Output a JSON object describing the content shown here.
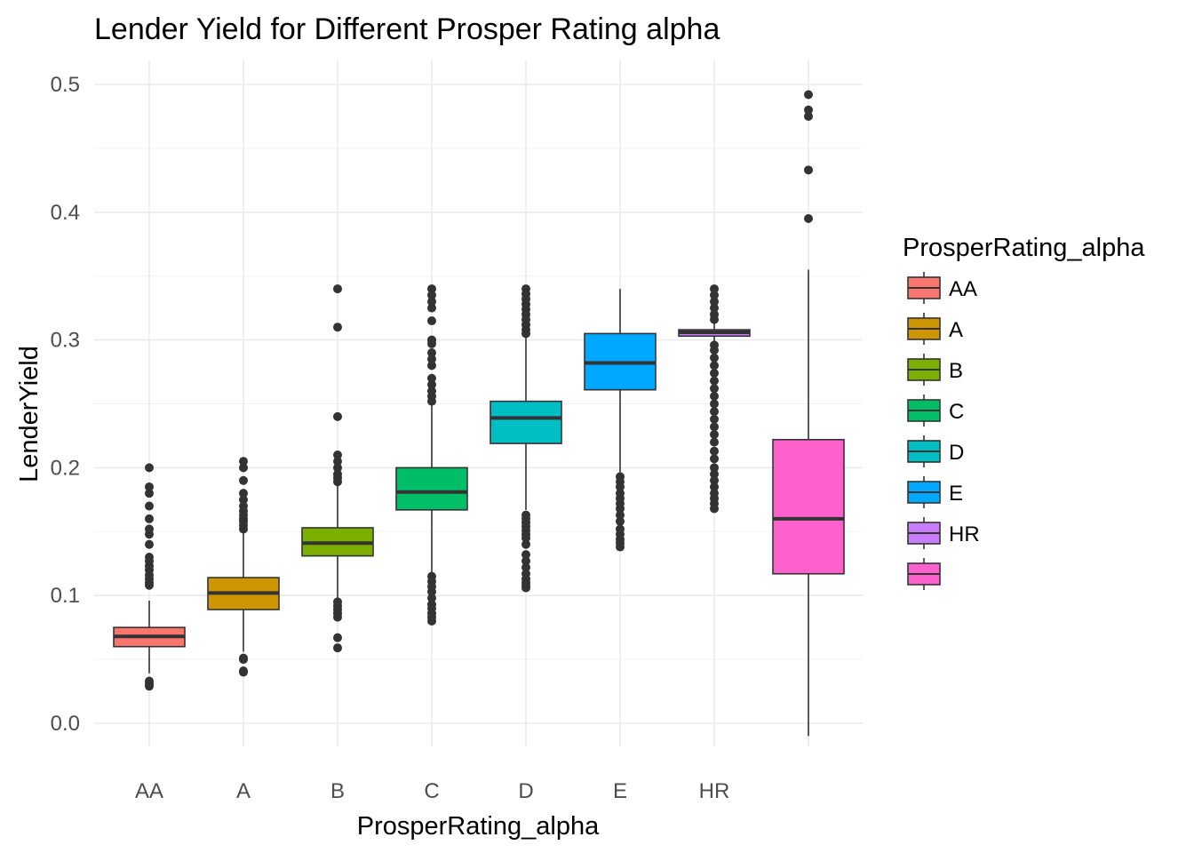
{
  "chart_data": {
    "type": "box",
    "title": "Lender Yield for Different Prosper Rating alpha",
    "xlabel": "ProsperRating_alpha",
    "ylabel": "LenderYield",
    "ylim": [
      -0.02,
      0.505
    ],
    "yticks": [
      0.0,
      0.1,
      0.2,
      0.3,
      0.4,
      0.5
    ],
    "ytick_labels": [
      "0.0",
      "0.1",
      "0.2",
      "0.3",
      "0.4",
      "0.5"
    ],
    "grid": true,
    "legend": {
      "title": "ProsperRating_alpha",
      "placement": "right"
    },
    "categories": [
      "AA",
      "A",
      "B",
      "C",
      "D",
      "E",
      "HR",
      ""
    ],
    "colors": [
      "#F8766D",
      "#CD9600",
      "#7CAE00",
      "#00BE67",
      "#00BFC4",
      "#00A9FF",
      "#C77CFF",
      "#FF61CC"
    ],
    "boxes": [
      {
        "category": "AA",
        "whisker_low": 0.039,
        "q1": 0.06,
        "median": 0.068,
        "q3": 0.075,
        "whisker_high": 0.096,
        "outliers": [
          0.029,
          0.031,
          0.033,
          0.108,
          0.11,
          0.113,
          0.116,
          0.12,
          0.123,
          0.127,
          0.13,
          0.14,
          0.148,
          0.152,
          0.16,
          0.17,
          0.18,
          0.185,
          0.2
        ]
      },
      {
        "category": "A",
        "whisker_low": 0.056,
        "q1": 0.089,
        "median": 0.102,
        "q3": 0.114,
        "whisker_high": 0.15,
        "outliers": [
          0.04,
          0.041,
          0.05,
          0.051,
          0.152,
          0.155,
          0.158,
          0.16,
          0.163,
          0.166,
          0.17,
          0.175,
          0.18,
          0.19,
          0.2,
          0.205
        ]
      },
      {
        "category": "B",
        "whisker_low": 0.097,
        "q1": 0.131,
        "median": 0.141,
        "q3": 0.153,
        "whisker_high": 0.187,
        "outliers": [
          0.059,
          0.067,
          0.083,
          0.086,
          0.089,
          0.092,
          0.095,
          0.189,
          0.192,
          0.195,
          0.2,
          0.205,
          0.21,
          0.24,
          0.31,
          0.34
        ]
      },
      {
        "category": "C",
        "whisker_low": 0.117,
        "q1": 0.167,
        "median": 0.181,
        "q3": 0.2,
        "whisker_high": 0.249,
        "outliers": [
          0.08,
          0.083,
          0.086,
          0.09,
          0.093,
          0.098,
          0.103,
          0.107,
          0.111,
          0.115,
          0.252,
          0.256,
          0.26,
          0.265,
          0.27,
          0.28,
          0.285,
          0.29,
          0.297,
          0.3,
          0.315,
          0.325,
          0.33,
          0.335,
          0.34
        ]
      },
      {
        "category": "D",
        "whisker_low": 0.167,
        "q1": 0.219,
        "median": 0.239,
        "q3": 0.252,
        "whisker_high": 0.303,
        "outliers": [
          0.106,
          0.108,
          0.11,
          0.113,
          0.117,
          0.122,
          0.127,
          0.132,
          0.14,
          0.145,
          0.148,
          0.151,
          0.154,
          0.157,
          0.16,
          0.163,
          0.305,
          0.308,
          0.312,
          0.316,
          0.32,
          0.324,
          0.328,
          0.332,
          0.336,
          0.34
        ]
      },
      {
        "category": "E",
        "whisker_low": 0.195,
        "q1": 0.261,
        "median": 0.282,
        "q3": 0.305,
        "whisker_high": 0.34,
        "outliers": [
          0.138,
          0.141,
          0.144,
          0.148,
          0.152,
          0.158,
          0.163,
          0.168,
          0.172,
          0.176,
          0.18,
          0.185,
          0.189,
          0.193
        ]
      },
      {
        "category": "HR",
        "whisker_low": 0.298,
        "q1": 0.303,
        "median": 0.306,
        "q3": 0.308,
        "whisker_high": 0.313,
        "outliers": [
          0.168,
          0.172,
          0.176,
          0.18,
          0.185,
          0.19,
          0.195,
          0.2,
          0.207,
          0.213,
          0.22,
          0.226,
          0.232,
          0.238,
          0.244,
          0.25,
          0.256,
          0.262,
          0.268,
          0.274,
          0.28,
          0.286,
          0.292,
          0.296,
          0.316,
          0.32,
          0.325,
          0.33,
          0.335,
          0.34
        ]
      },
      {
        "category": "",
        "whisker_low": -0.01,
        "q1": 0.117,
        "median": 0.16,
        "q3": 0.222,
        "whisker_high": 0.355,
        "outliers": [
          0.395,
          0.433,
          0.475,
          0.48,
          0.492
        ]
      }
    ]
  }
}
